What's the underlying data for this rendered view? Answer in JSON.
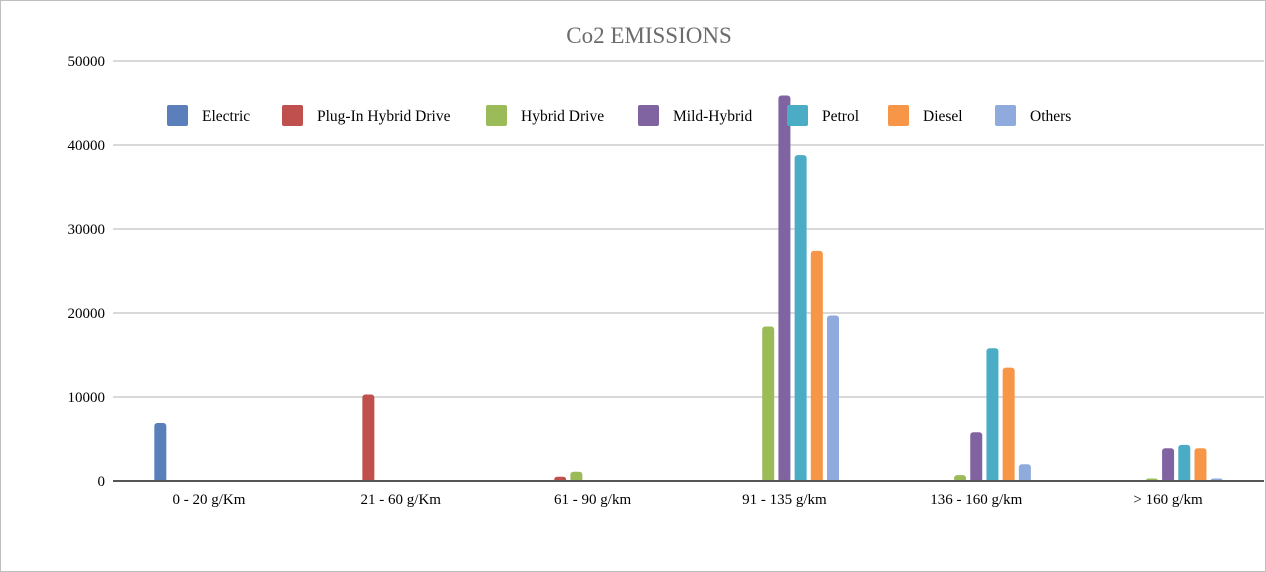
{
  "chart_data": {
    "type": "bar",
    "title": "Co2 EMISSIONS",
    "xlabel": "",
    "ylabel": "",
    "ylim": [
      0,
      50000
    ],
    "yticks": [
      0,
      10000,
      20000,
      30000,
      40000,
      50000
    ],
    "grid": true,
    "legend_position": "top",
    "categories": [
      "0 - 20 g/Km",
      "21 - 60 g/Km",
      "61 - 90 g/km",
      "91 - 135 g/km",
      "136 - 160 g/km",
      "> 160 g/km"
    ],
    "series": [
      {
        "name": "Electric",
        "color": "#5b7fbb",
        "values": [
          6900,
          0,
          0,
          0,
          0,
          0
        ]
      },
      {
        "name": "Plug-In Hybrid Drive",
        "color": "#c0504d",
        "values": [
          0,
          10300,
          500,
          0,
          0,
          0
        ]
      },
      {
        "name": "Hybrid Drive",
        "color": "#9bbb59",
        "values": [
          0,
          0,
          1100,
          18400,
          700,
          300
        ]
      },
      {
        "name": "Mild-Hybrid",
        "color": "#8064a2",
        "values": [
          0,
          0,
          0,
          45900,
          5800,
          3900
        ]
      },
      {
        "name": "Petrol",
        "color": "#4bacc6",
        "values": [
          0,
          0,
          0,
          38800,
          15800,
          4300
        ]
      },
      {
        "name": "Diesel",
        "color": "#f79646",
        "values": [
          0,
          0,
          0,
          27400,
          13500,
          3900
        ]
      },
      {
        "name": "Others",
        "color": "#8faadc",
        "values": [
          0,
          0,
          0,
          19700,
          2000,
          300
        ]
      }
    ]
  }
}
